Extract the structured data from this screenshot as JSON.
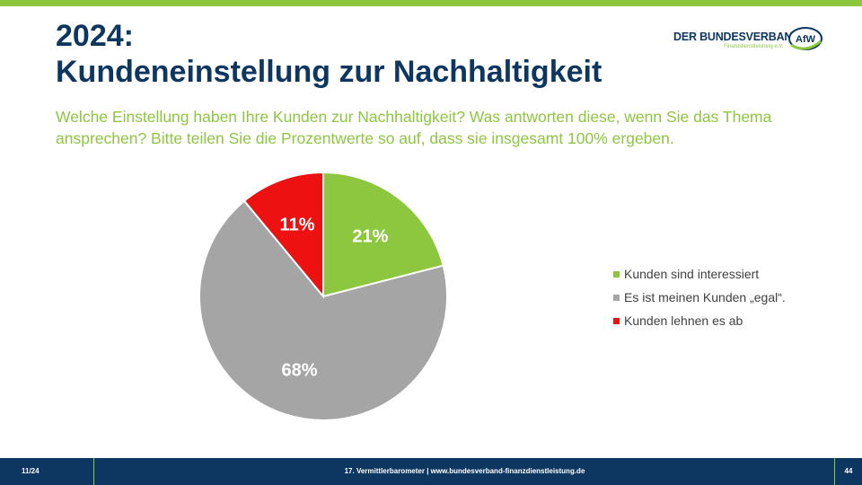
{
  "header": {
    "title_line1": "2024:",
    "title_line2": "Kundeneinstellung zur Nachhaltigkeit",
    "question": "Welche Einstellung haben Ihre Kunden zur Nachhaltigkeit? Was antworten diese, wenn Sie das Thema ansprechen? Bitte teilen Sie die Prozentwerte so auf, dass sie insgesamt 100% ergeben."
  },
  "logo": {
    "name": "DER BUNDESVERBAND",
    "sub": "Finanzdienstleistung e.V.",
    "badge": "AfW"
  },
  "colors": {
    "primary": "#0d3660",
    "accent": "#8dc63f",
    "grey": "#a5a5a5",
    "red": "#ee1111"
  },
  "chart_data": {
    "type": "pie",
    "title": "",
    "categories": [
      "Kunden sind interessiert",
      "Es ist meinen Kunden „egal“.",
      "Kunden lehnen es ab"
    ],
    "values": [
      21,
      68,
      11
    ],
    "labels": [
      "21%",
      "68%",
      "11%"
    ],
    "colors": [
      "#8dc63f",
      "#a5a5a5",
      "#ee1111"
    ],
    "legend_position": "right"
  },
  "footer": {
    "left": "11/24",
    "center": "17. Vermittlerbarometer | www.bundesverband-finanzdienstleistung.de",
    "page": "44"
  }
}
